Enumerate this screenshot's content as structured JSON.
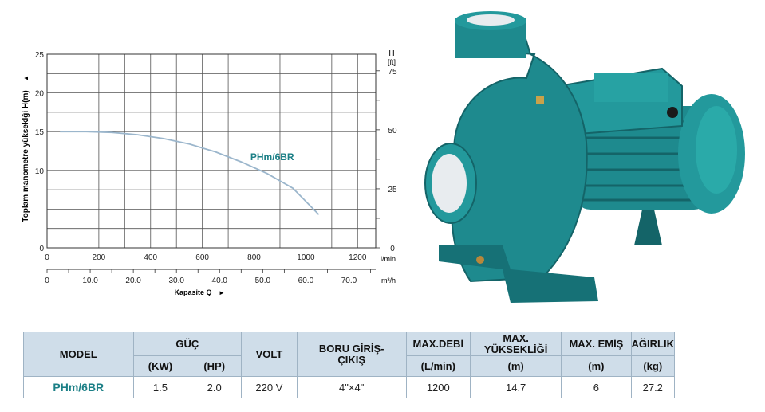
{
  "chart_data": {
    "type": "line",
    "title": "",
    "ylabel": "Toplam manometre yükseklği H(m)",
    "ylabel_arrow": "▲",
    "xlabel": "Kapasite Q",
    "xlabel_arrow": "►",
    "left_y_ticks": [
      "0",
      "10",
      "15",
      "20",
      "25"
    ],
    "right_y_label_top": "H",
    "right_y_label_unit": "[ft]",
    "right_y_ticks": [
      "0",
      "25",
      "50",
      "75"
    ],
    "x_ticks_lmin": [
      "0",
      "200",
      "400",
      "600",
      "800",
      "1000",
      "1200"
    ],
    "x_unit_lmin": "l/min",
    "x_ticks_m3h": [
      "0",
      "10.0",
      "20.0",
      "30.0",
      "40.0",
      "50.0",
      "60.0",
      "70.0"
    ],
    "x_unit_m3h": "m³/h",
    "xlim": [
      0,
      1270
    ],
    "ylim": [
      0,
      25
    ],
    "grid": true,
    "series": [
      {
        "name": "PHm/6BR",
        "color": "#9bb6cc",
        "x": [
          50,
          150,
          250,
          350,
          450,
          550,
          650,
          750,
          850,
          950,
          1050
        ],
        "y": [
          15.0,
          15.0,
          14.9,
          14.6,
          14.1,
          13.4,
          12.4,
          11.1,
          9.6,
          7.7,
          4.3
        ]
      }
    ]
  },
  "series_label_color": "#1b7f86",
  "table": {
    "headers": {
      "model": "MODEL",
      "power": "GÜÇ",
      "power_kw": "(KW)",
      "power_hp": "(HP)",
      "volt": "VOLT",
      "pipe": "BORU GİRİŞ-ÇIKIŞ",
      "max_flow": "MAX.DEBİ",
      "max_flow_unit": "(L/min)",
      "max_head": "MAX. YÜKSEKLİĞİ",
      "max_head_unit": "(m)",
      "max_suction": "MAX. EMİŞ",
      "max_suction_unit": "(m)",
      "weight": "AĞIRLIK",
      "weight_unit": "(kg)"
    },
    "row": {
      "model": "PHm/6BR",
      "kw": "1.5",
      "hp": "2.0",
      "volt": "220 V",
      "pipe": "4\"×4\"",
      "max_flow": "1200",
      "max_head": "14.7",
      "max_suction": "6",
      "weight": "27.2"
    }
  },
  "colors": {
    "pump_body": "#1e8a8e",
    "pump_dark": "#146468",
    "table_header": "#cfdde9"
  }
}
